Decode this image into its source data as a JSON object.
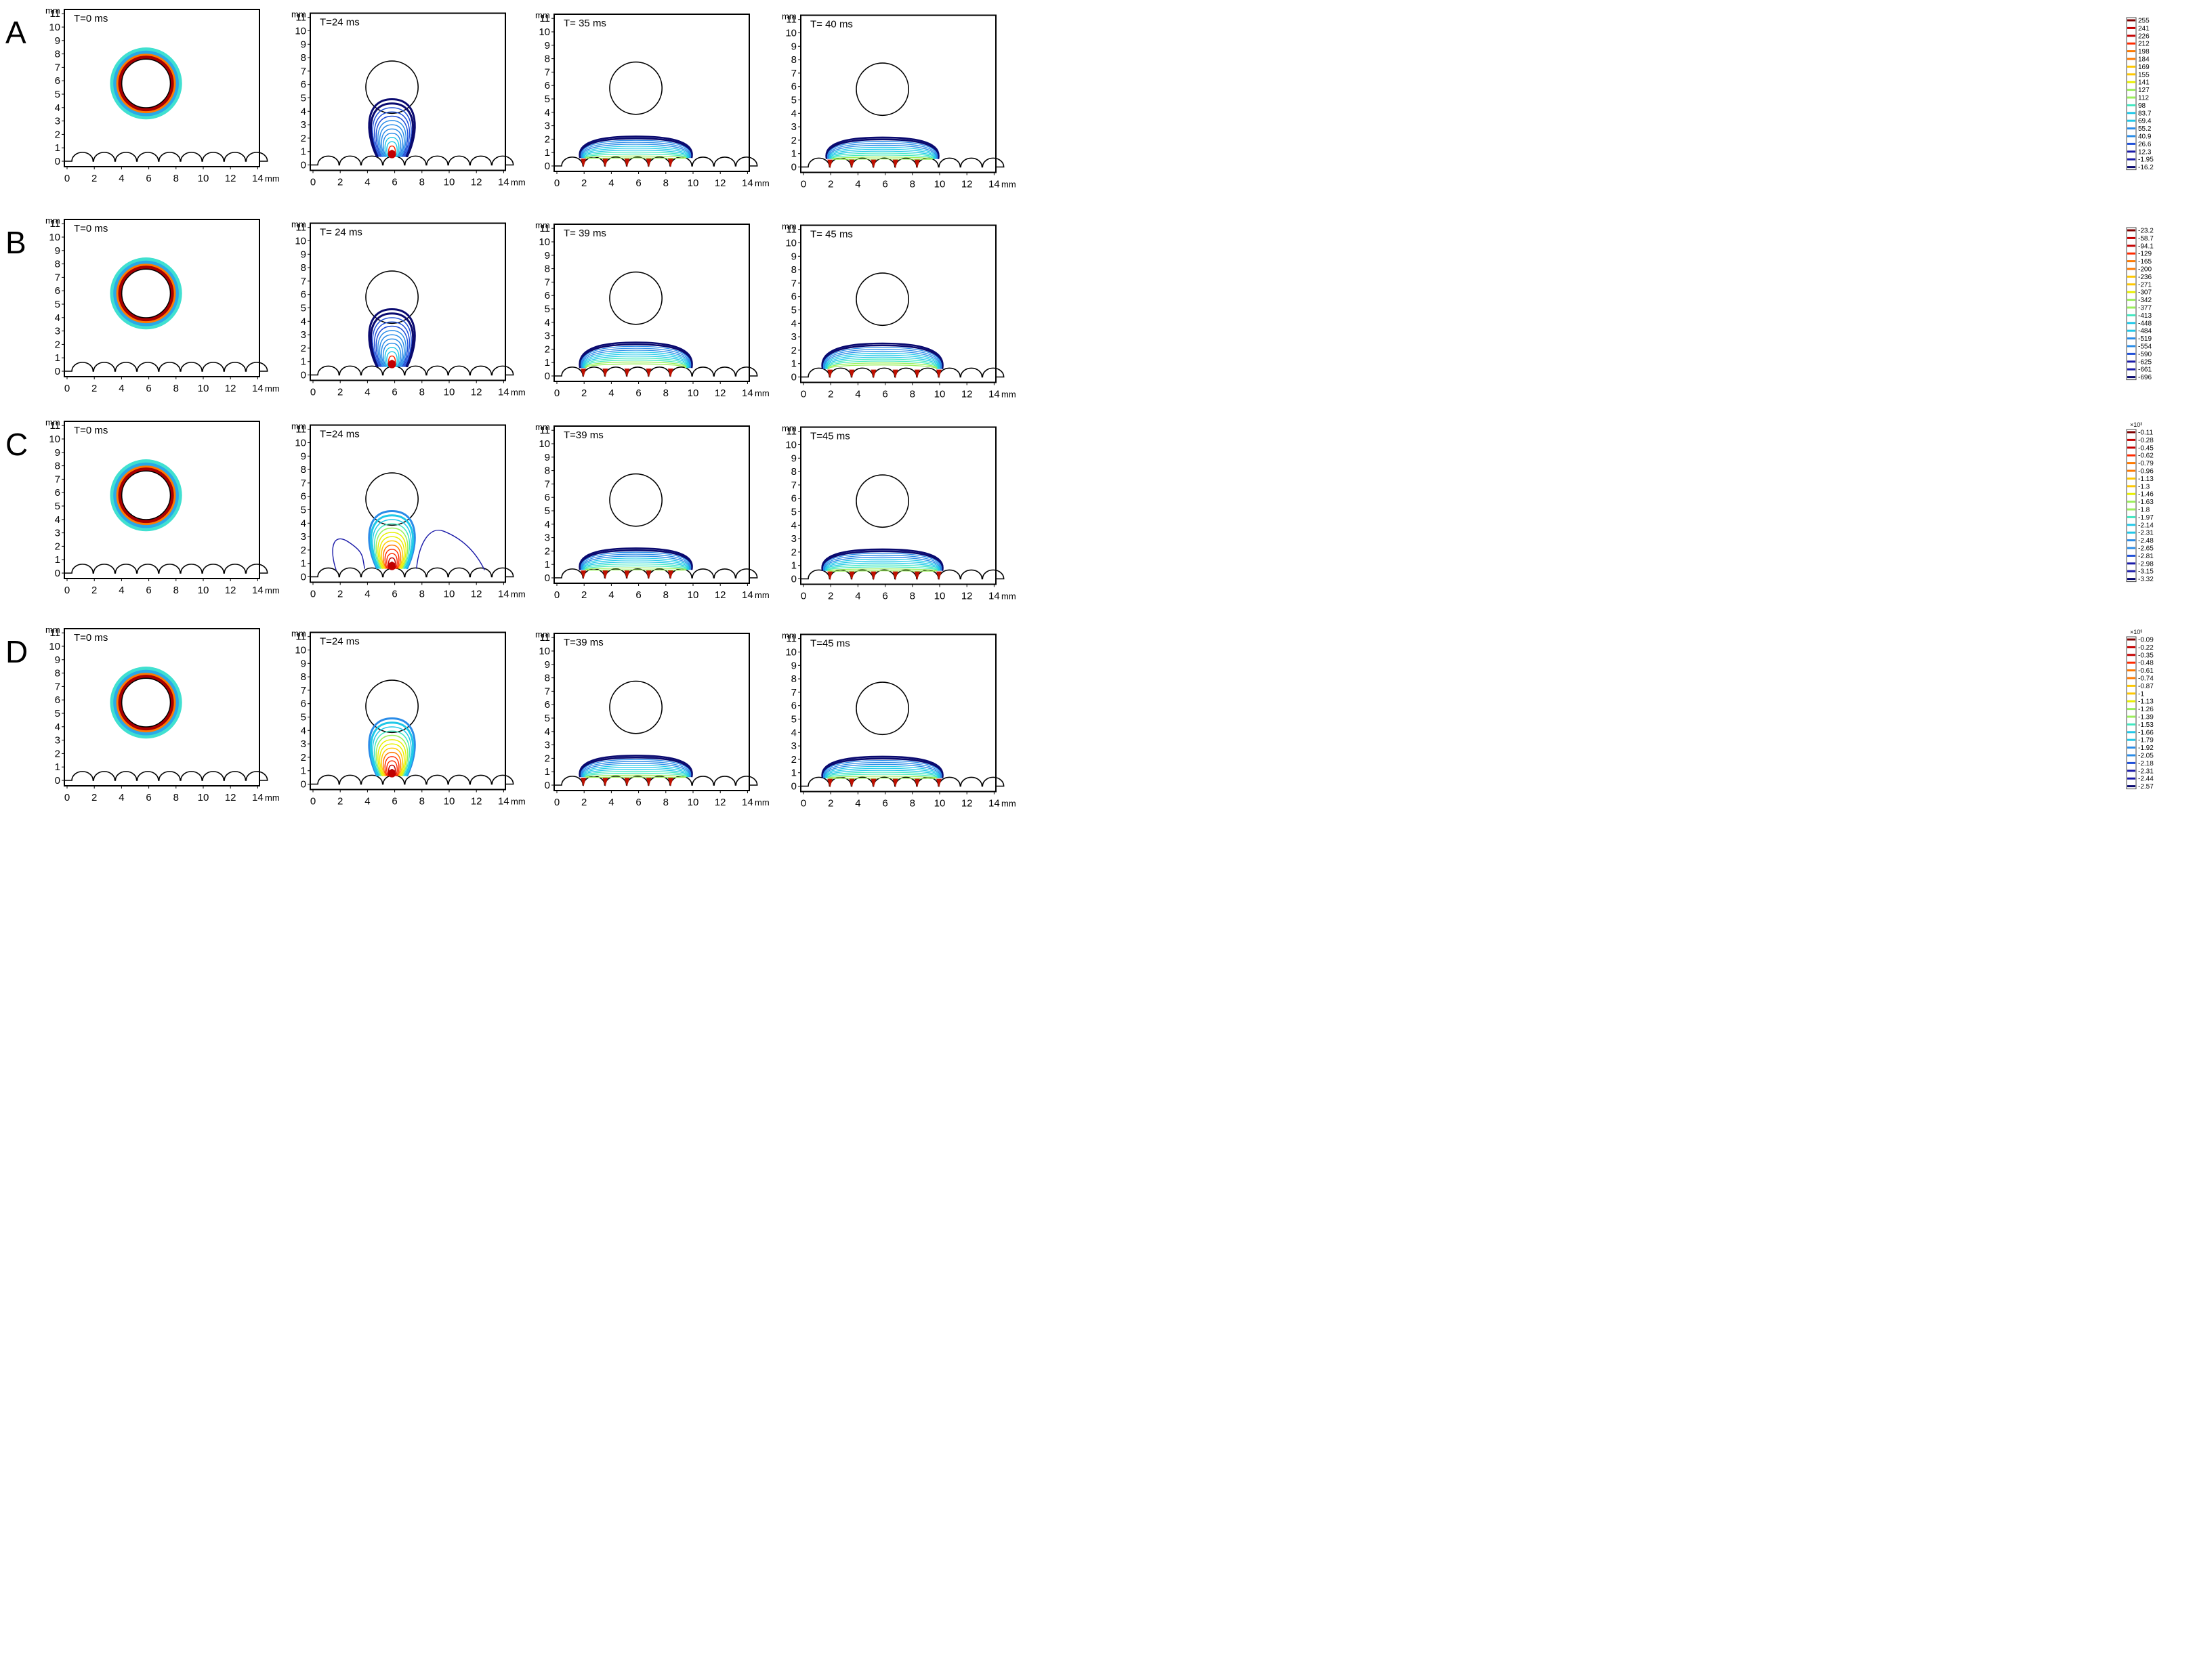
{
  "figure": {
    "axis_unit": "mm",
    "x_ticks": [
      "0",
      "2",
      "4",
      "6",
      "8",
      "10",
      "12",
      "14"
    ],
    "y_ticks": [
      "0",
      "1",
      "2",
      "3",
      "4",
      "5",
      "6",
      "7",
      "8",
      "9",
      "10",
      "11"
    ],
    "rows": [
      {
        "label": "A",
        "panels": [
          {
            "time": "T=0 ms",
            "stage": "initial"
          },
          {
            "time": "T=24 ms",
            "stage": "impact"
          },
          {
            "time": "T= 35 ms",
            "stage": "spread"
          },
          {
            "time": "T= 40 ms",
            "stage": "spread"
          }
        ],
        "colorbar": {
          "exponent": "",
          "values": [
            "255",
            "241",
            "226",
            "212",
            "198",
            "184",
            "169",
            "155",
            "141",
            "127",
            "112",
            "98",
            "83.7",
            "69.4",
            "55.2",
            "40.9",
            "26.6",
            "12.3",
            "-1.95",
            "-16.2"
          ]
        }
      },
      {
        "label": "B",
        "panels": [
          {
            "time": "T=0 ms",
            "stage": "initial"
          },
          {
            "time": "T= 24 ms",
            "stage": "impact"
          },
          {
            "time": "T= 39 ms",
            "stage": "spread"
          },
          {
            "time": "T= 45 ms",
            "stage": "spread"
          }
        ],
        "colorbar": {
          "exponent": "",
          "values": [
            "-23.2",
            "-58.7",
            "-94.1",
            "-129",
            "-165",
            "-200",
            "-236",
            "-271",
            "-307",
            "-342",
            "-377",
            "-413",
            "-448",
            "-484",
            "-519",
            "-554",
            "-590",
            "-625",
            "-661",
            "-696"
          ]
        }
      },
      {
        "label": "C",
        "panels": [
          {
            "time": "T=0 ms",
            "stage": "initial"
          },
          {
            "time": "T=24 ms",
            "stage": "impact-wide"
          },
          {
            "time": "T=39 ms",
            "stage": "spread"
          },
          {
            "time": "T=45 ms",
            "stage": "spread"
          }
        ],
        "colorbar": {
          "exponent": "×10³",
          "values": [
            "-0.11",
            "-0.28",
            "-0.45",
            "-0.62",
            "-0.79",
            "-0.96",
            "-1.13",
            "-1.3",
            "-1.46",
            "-1.63",
            "-1.8",
            "-1.97",
            "-2.14",
            "-2.31",
            "-2.48",
            "-2.65",
            "-2.81",
            "-2.98",
            "-3.15",
            "-3.32"
          ]
        }
      },
      {
        "label": "D",
        "panels": [
          {
            "time": "T=0 ms",
            "stage": "initial"
          },
          {
            "time": "T=24 ms",
            "stage": "impact-warm"
          },
          {
            "time": "T=39 ms",
            "stage": "spread"
          },
          {
            "time": "T=45 ms",
            "stage": "spread"
          }
        ],
        "colorbar": {
          "exponent": "×10³",
          "values": [
            "-0.09",
            "-0.22",
            "-0.35",
            "-0.48",
            "-0.61",
            "-0.74",
            "-0.87",
            "-1",
            "-1.13",
            "-1.26",
            "-1.39",
            "-1.53",
            "-1.66",
            "-1.79",
            "-1.92",
            "-2.05",
            "-2.18",
            "-2.31",
            "-2.44",
            "-2.57"
          ]
        }
      }
    ],
    "colors": {
      "frame": "#000000",
      "colormap": [
        "#7f0000",
        "#c40000",
        "#ff2a00",
        "#ff7a00",
        "#ffc800",
        "#e8f000",
        "#9af05a",
        "#40e8c0",
        "#20c8e8",
        "#2a8ce8",
        "#2050d8",
        "#1a1aa8",
        "#0a0a70"
      ]
    }
  }
}
